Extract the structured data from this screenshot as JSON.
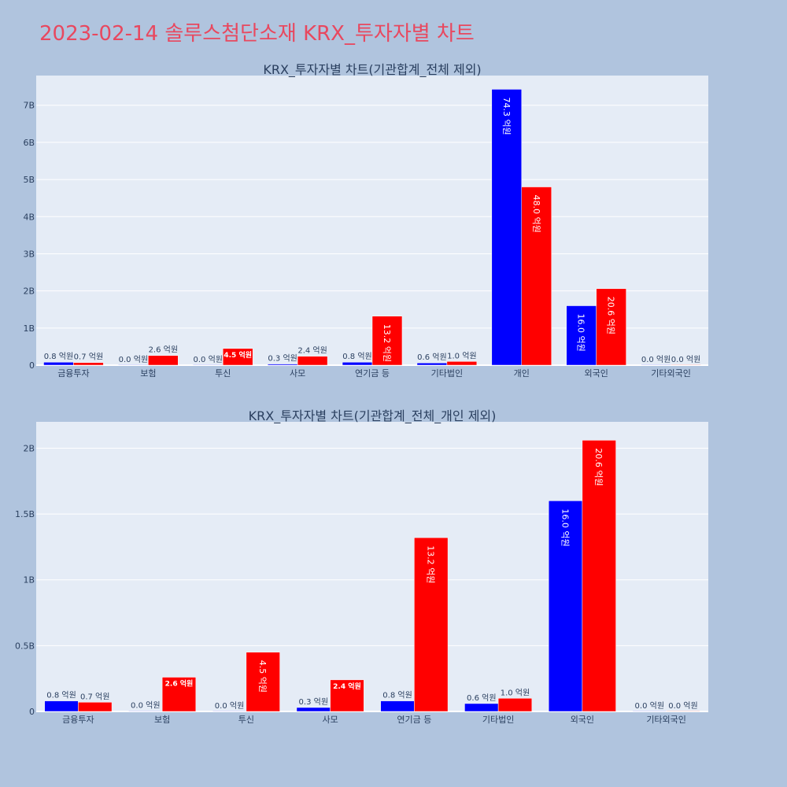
{
  "page": {
    "title": "2023-02-14 솔루스첨단소재 KRX_투자자별 차트",
    "title_color": "#e8485f",
    "background": "#b0c4de",
    "plot_background": "#e5ecf6"
  },
  "chart_data": [
    {
      "type": "bar",
      "title": "KRX_투자자별 차트(기관합계_전체 제외)",
      "categories": [
        "금융투자",
        "보험",
        "투신",
        "사모",
        "연기금 등",
        "기타법인",
        "개인",
        "외국인",
        "기타외국인"
      ],
      "series": [
        {
          "color": "#0000ff",
          "values": [
            80000000,
            2000000,
            1000000,
            30000000,
            80000000,
            60000000,
            7430000000,
            1600000000,
            1000000
          ],
          "labels": [
            "0.8 억원",
            "0.0 억원",
            "0.0 억원",
            "0.3 억원",
            "0.8 억원",
            "0.6 억원",
            "74.3 억원",
            "16.0 억원",
            "0.0 억원"
          ]
        },
        {
          "color": "#ff0000",
          "values": [
            70000000,
            260000000,
            450000000,
            240000000,
            1320000000,
            100000000,
            4800000000,
            2060000000,
            1000000
          ],
          "labels": [
            "0.7 억원",
            "2.6 억원",
            "4.5 억원",
            "2.4 억원",
            "13.2 억원",
            "1.0 억원",
            "48.0 억원",
            "20.6 억원",
            "0.0 억원"
          ]
        }
      ],
      "yaxis": {
        "range": [
          0,
          7800000000
        ],
        "ticks": [
          0,
          1000000000,
          2000000000,
          3000000000,
          4000000000,
          5000000000,
          6000000000,
          7000000000
        ],
        "tick_labels": [
          "0",
          "1B",
          "2B",
          "3B",
          "4B",
          "5B",
          "6B",
          "7B"
        ]
      },
      "grid": true,
      "legend": "none"
    },
    {
      "type": "bar",
      "title": "KRX_투자자별 차트(기관합계_전체_개인 제외)",
      "categories": [
        "금융투자",
        "보험",
        "투신",
        "사모",
        "연기금 등",
        "기타법인",
        "외국인",
        "기타외국인"
      ],
      "series": [
        {
          "color": "#0000ff",
          "values": [
            80000000,
            2000000,
            1000000,
            30000000,
            80000000,
            60000000,
            1600000000,
            1000000
          ],
          "labels": [
            "0.8 억원",
            "0.0 억원",
            "0.0 억원",
            "0.3 억원",
            "0.8 억원",
            "0.6 억원",
            "16.0 억원",
            "0.0 억원"
          ]
        },
        {
          "color": "#ff0000",
          "values": [
            70000000,
            260000000,
            450000000,
            240000000,
            1320000000,
            100000000,
            2060000000,
            1000000
          ],
          "labels": [
            "0.7 억원",
            "2.6 억원",
            "4.5 억원",
            "2.4 억원",
            "13.2 억원",
            "1.0 억원",
            "20.6 억원",
            "0.0 억원"
          ]
        }
      ],
      "yaxis": {
        "range": [
          0,
          2200000000
        ],
        "ticks": [
          0,
          500000000,
          1000000000,
          1500000000,
          2000000000
        ],
        "tick_labels": [
          "0",
          "0.5B",
          "1B",
          "1.5B",
          "2B"
        ]
      },
      "grid": true,
      "legend": "none"
    }
  ]
}
